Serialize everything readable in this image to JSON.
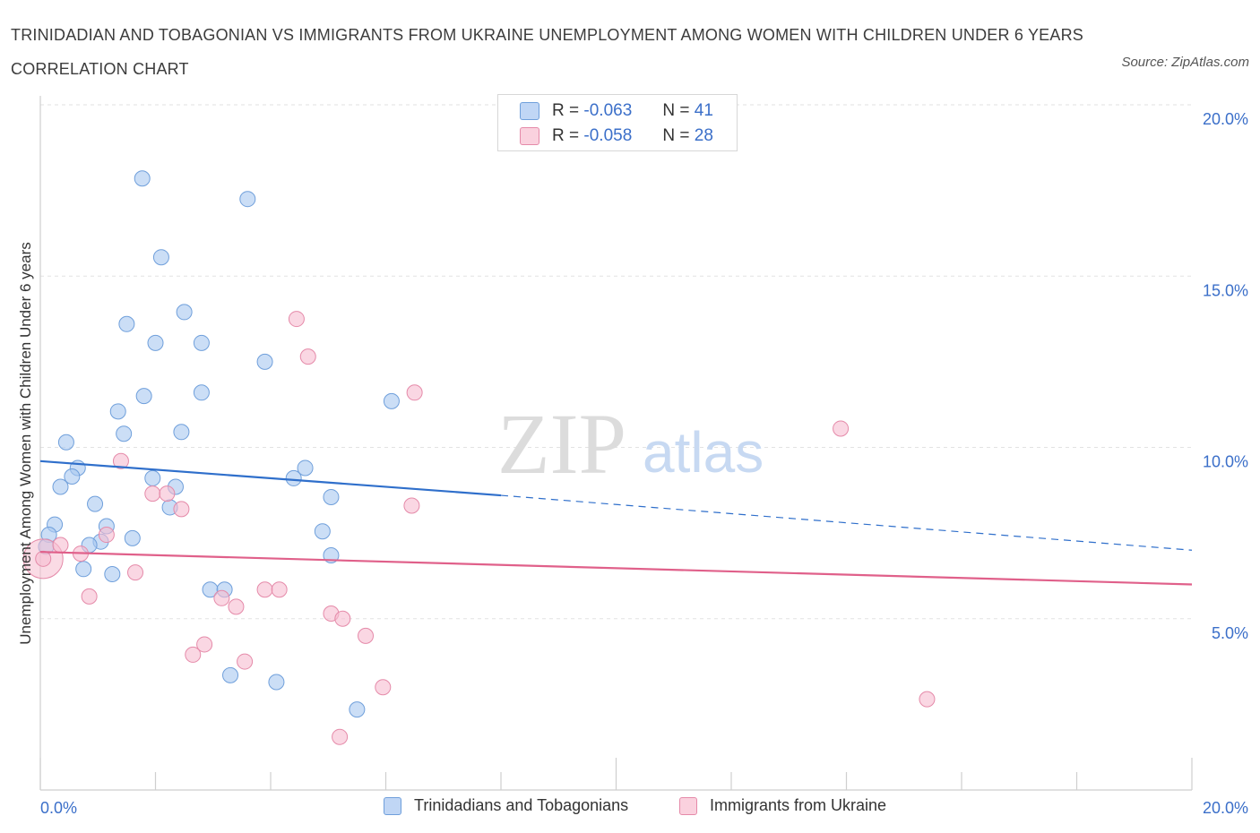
{
  "title": "TRINIDADIAN AND TOBAGONIAN VS IMMIGRANTS FROM UKRAINE UNEMPLOYMENT AMONG WOMEN WITH CHILDREN UNDER 6 YEARS CORRELATION CHART",
  "source": "Source: ZipAtlas.com",
  "watermark": {
    "zip": "ZIP",
    "atlas": "atlas"
  },
  "legend": {
    "r_label": "R =",
    "n_label": "N =",
    "rows": [
      {
        "r": "-0.063",
        "n": "41"
      },
      {
        "r": "-0.058",
        "n": "28"
      }
    ]
  },
  "chart_data": {
    "type": "scatter",
    "xlabel": "",
    "ylabel": "Unemployment Among Women with Children Under 6 years",
    "xlim": [
      0,
      20
    ],
    "ylim": [
      0,
      20
    ],
    "x_tick_labels": [
      "0.0%",
      "20.0%"
    ],
    "y_tick_labels": [
      "5.0%",
      "10.0%",
      "15.0%",
      "20.0%"
    ],
    "y_ticks": [
      5,
      10,
      15,
      20
    ],
    "grid": true,
    "legend_position": "bottom",
    "series": [
      {
        "name": "Trinidadians and Tobagonians",
        "color": "#a9c8f0",
        "edge": "#6f9fdb",
        "line_color": "#2f6fcb",
        "trend": {
          "x0": 0,
          "y0": 9.6,
          "x1": 8,
          "y1": 8.6,
          "x_dash_end": 20,
          "y_dash_end": 7.0
        },
        "points": [
          [
            1.77,
            17.85
          ],
          [
            3.6,
            17.25
          ],
          [
            2.1,
            15.55
          ],
          [
            1.5,
            13.6
          ],
          [
            2.5,
            13.95
          ],
          [
            2.0,
            13.05
          ],
          [
            2.8,
            13.05
          ],
          [
            3.9,
            12.5
          ],
          [
            1.8,
            11.5
          ],
          [
            2.8,
            11.6
          ],
          [
            6.1,
            11.35
          ],
          [
            1.35,
            11.05
          ],
          [
            1.45,
            10.4
          ],
          [
            2.45,
            10.45
          ],
          [
            0.45,
            10.15
          ],
          [
            0.65,
            9.4
          ],
          [
            4.6,
            9.4
          ],
          [
            0.55,
            9.15
          ],
          [
            1.95,
            9.1
          ],
          [
            4.4,
            9.1
          ],
          [
            0.35,
            8.85
          ],
          [
            2.35,
            8.85
          ],
          [
            5.05,
            8.55
          ],
          [
            2.25,
            8.25
          ],
          [
            0.95,
            8.35
          ],
          [
            0.25,
            7.75
          ],
          [
            1.15,
            7.7
          ],
          [
            4.9,
            7.55
          ],
          [
            0.15,
            7.45
          ],
          [
            1.6,
            7.35
          ],
          [
            1.05,
            7.25
          ],
          [
            0.85,
            7.15
          ],
          [
            0.1,
            7.1
          ],
          [
            5.05,
            6.85
          ],
          [
            0.75,
            6.45
          ],
          [
            1.25,
            6.3
          ],
          [
            2.95,
            5.85
          ],
          [
            3.2,
            5.85
          ],
          [
            3.3,
            3.35
          ],
          [
            4.1,
            3.15
          ],
          [
            5.5,
            2.35
          ]
        ]
      },
      {
        "name": "Immigrants from Ukraine",
        "color": "#f6bdd0",
        "edge": "#e58aa9",
        "line_color": "#e0608a",
        "trend": {
          "x0": 0,
          "y0": 6.95,
          "x1": 20,
          "y1": 6.0
        },
        "points": [
          [
            4.45,
            13.75
          ],
          [
            4.65,
            12.65
          ],
          [
            6.5,
            11.6
          ],
          [
            13.9,
            10.55
          ],
          [
            1.4,
            9.6
          ],
          [
            1.95,
            8.65
          ],
          [
            2.2,
            8.65
          ],
          [
            6.45,
            8.3
          ],
          [
            2.45,
            8.2
          ],
          [
            1.15,
            7.45
          ],
          [
            0.35,
            7.15
          ],
          [
            0.7,
            6.9
          ],
          [
            0.05,
            6.75
          ],
          [
            1.65,
            6.35
          ],
          [
            0.85,
            5.65
          ],
          [
            3.9,
            5.85
          ],
          [
            4.15,
            5.85
          ],
          [
            3.15,
            5.6
          ],
          [
            3.4,
            5.35
          ],
          [
            5.05,
            5.15
          ],
          [
            5.25,
            5.0
          ],
          [
            5.65,
            4.5
          ],
          [
            2.85,
            4.25
          ],
          [
            2.65,
            3.95
          ],
          [
            3.55,
            3.75
          ],
          [
            5.95,
            3.0
          ],
          [
            15.4,
            2.65
          ],
          [
            5.2,
            1.55
          ]
        ],
        "big_point": [
          0.05,
          6.75
        ]
      }
    ]
  }
}
